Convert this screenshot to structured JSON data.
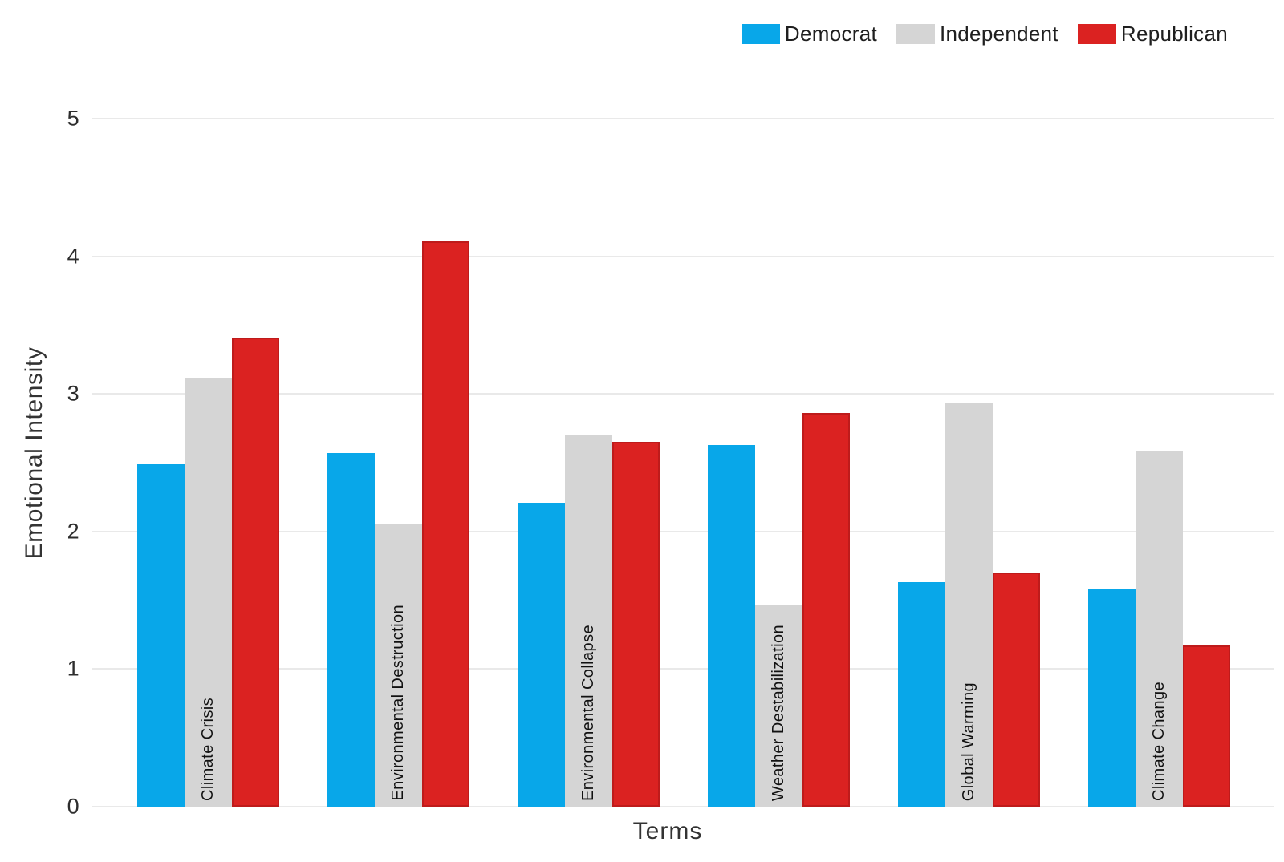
{
  "chart_data": {
    "type": "bar",
    "title": "",
    "xlabel": "Terms",
    "ylabel": "Emotional Intensity",
    "ylim": [
      0,
      5
    ],
    "yticks": [
      0,
      1,
      2,
      3,
      4,
      5
    ],
    "grid": "horizontal",
    "legend_position": "top-right",
    "categories": [
      "Climate Crisis",
      "Environmental Destruction",
      "Environmental Collapse",
      "Weather Destabilization",
      "Global Warming",
      "Climate Change"
    ],
    "series": [
      {
        "name": "Democrat",
        "color": "#08a7e9",
        "border_color": null,
        "values": [
          2.49,
          2.57,
          2.21,
          2.63,
          1.63,
          1.58
        ]
      },
      {
        "name": "Independent",
        "color": "#d5d5d5",
        "border_color": null,
        "values": [
          3.12,
          2.05,
          2.7,
          1.46,
          2.94,
          2.58
        ]
      },
      {
        "name": "Republican",
        "color": "#db2221",
        "border_color": "#be1b1b",
        "values": [
          3.41,
          4.11,
          2.65,
          2.86,
          1.7,
          1.17
        ]
      }
    ]
  }
}
